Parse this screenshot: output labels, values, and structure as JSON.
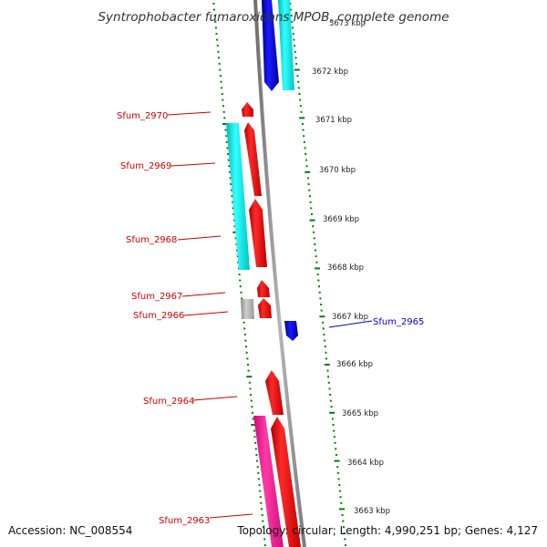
{
  "title": "Syntrophobacter fumaroxidans MPOB, complete genome",
  "accession": "Accession: NC_008554",
  "topology": "Topology: circular; Length: 4,990,251 bp; Genes: 4,127",
  "colors": {
    "forward_cds": "#ff0000",
    "reverse_cds": "#0000cc",
    "rna_cyan": "#00e5e5",
    "pink_cds": "#ff1493",
    "gray_feature": "#a8a8a8",
    "tick_green": "#008000",
    "backbone": "#888888",
    "label_red": "#cc0000",
    "label_blue": "#0000cc"
  },
  "scale_labels": [
    "3673 kbp",
    "3672 kbp",
    "3671 kbp",
    "3670 kbp",
    "3669 kbp",
    "3668 kbp",
    "3667 kbp",
    "3666 kbp",
    "3665 kbp",
    "3664 kbp",
    "3663 kbp"
  ],
  "gene_labels": [
    {
      "text": "Sfum_2970",
      "strand": "forward"
    },
    {
      "text": "Sfum_2969",
      "strand": "forward"
    },
    {
      "text": "Sfum_2968",
      "strand": "forward"
    },
    {
      "text": "Sfum_2967",
      "strand": "forward"
    },
    {
      "text": "Sfum_2966",
      "strand": "forward"
    },
    {
      "text": "Sfum_2965",
      "strand": "reverse"
    },
    {
      "text": "Sfum_2964",
      "strand": "forward"
    },
    {
      "text": "Sfum_2963",
      "strand": "forward"
    }
  ]
}
